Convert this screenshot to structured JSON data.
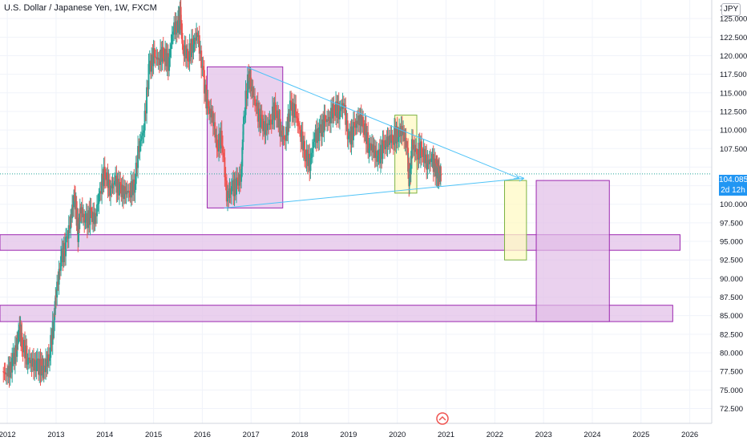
{
  "header": {
    "title": "U.S. Dollar / Japanese Yen, 1W, FXCM",
    "currency": "JPY"
  },
  "price_tag": {
    "price": "104.085",
    "countdown": "2d 12h"
  },
  "colors": {
    "up_candle": "#26a69a",
    "down_candle": "#ef5350",
    "trendline": "#4fc3f7",
    "zone_fill": "#e1bee7",
    "zone_stroke": "#9c27b0",
    "yellow_fill": "#fff9c4",
    "yellow_stroke": "#7cb342",
    "price_line": "#26a69a"
  },
  "logo_icon": "tradingview-logo-icon",
  "chart_data": {
    "type": "candlestick",
    "title": "U.S. Dollar / Japanese Yen, 1W, FXCM",
    "x_ticks": [
      "2012",
      "2013",
      "2014",
      "2015",
      "2016",
      "2017",
      "2018",
      "2019",
      "2020",
      "2021",
      "2022",
      "2023",
      "2024",
      "2025",
      "2026"
    ],
    "y_ticks": [
      "72.500",
      "75.000",
      "77.500",
      "80.000",
      "82.500",
      "85.000",
      "87.500",
      "90.000",
      "92.500",
      "95.000",
      "97.500",
      "100.000",
      "102.500",
      "105.000",
      "107.500",
      "110.000",
      "112.500",
      "115.000",
      "117.500",
      "120.000",
      "122.500",
      "125.000"
    ],
    "y_top_label": "1...0",
    "ylim": [
      70.5,
      127.5
    ],
    "xlim": [
      2011.85,
      2026.45
    ],
    "current_price": 104.085,
    "series": [
      {
        "name": "USDJPY weekly close (approx.)",
        "points": [
          [
            2011.9,
            77.5
          ],
          [
            2012.0,
            77.0
          ],
          [
            2012.1,
            78.5
          ],
          [
            2012.2,
            81.0
          ],
          [
            2012.25,
            83.5
          ],
          [
            2012.3,
            81.5
          ],
          [
            2012.4,
            79.5
          ],
          [
            2012.5,
            78.5
          ],
          [
            2012.6,
            78.2
          ],
          [
            2012.7,
            78.0
          ],
          [
            2012.75,
            77.8
          ],
          [
            2012.85,
            79.5
          ],
          [
            2012.95,
            84.0
          ],
          [
            2013.0,
            88.0
          ],
          [
            2013.1,
            92.5
          ],
          [
            2013.2,
            94.5
          ],
          [
            2013.3,
            98.0
          ],
          [
            2013.38,
            101.5
          ],
          [
            2013.45,
            96.0
          ],
          [
            2013.5,
            99.5
          ],
          [
            2013.6,
            97.5
          ],
          [
            2013.7,
            98.5
          ],
          [
            2013.8,
            98.0
          ],
          [
            2013.9,
            102.0
          ],
          [
            2014.0,
            104.5
          ],
          [
            2014.1,
            102.0
          ],
          [
            2014.2,
            103.0
          ],
          [
            2014.3,
            102.0
          ],
          [
            2014.4,
            101.5
          ],
          [
            2014.5,
            101.8
          ],
          [
            2014.6,
            102.5
          ],
          [
            2014.7,
            108.0
          ],
          [
            2014.8,
            110.0
          ],
          [
            2014.9,
            118.0
          ],
          [
            2015.0,
            120.0
          ],
          [
            2015.1,
            119.5
          ],
          [
            2015.2,
            120.5
          ],
          [
            2015.3,
            119.0
          ],
          [
            2015.4,
            123.5
          ],
          [
            2015.5,
            124.0
          ],
          [
            2015.55,
            125.5
          ],
          [
            2015.6,
            121.0
          ],
          [
            2015.7,
            120.0
          ],
          [
            2015.8,
            121.5
          ],
          [
            2015.9,
            123.0
          ],
          [
            2016.0,
            118.0
          ],
          [
            2016.1,
            113.0
          ],
          [
            2016.2,
            112.0
          ],
          [
            2016.3,
            108.0
          ],
          [
            2016.4,
            109.0
          ],
          [
            2016.5,
            101.0
          ],
          [
            2016.6,
            102.0
          ],
          [
            2016.7,
            102.5
          ],
          [
            2016.8,
            104.0
          ],
          [
            2016.85,
            112.0
          ],
          [
            2016.95,
            117.5
          ],
          [
            2017.0,
            116.0
          ],
          [
            2017.1,
            113.0
          ],
          [
            2017.2,
            111.0
          ],
          [
            2017.3,
            110.0
          ],
          [
            2017.4,
            111.5
          ],
          [
            2017.5,
            113.0
          ],
          [
            2017.6,
            110.0
          ],
          [
            2017.7,
            108.5
          ],
          [
            2017.8,
            113.0
          ],
          [
            2017.9,
            112.5
          ],
          [
            2018.0,
            110.0
          ],
          [
            2018.1,
            107.0
          ],
          [
            2018.2,
            105.5
          ],
          [
            2018.3,
            109.0
          ],
          [
            2018.4,
            109.5
          ],
          [
            2018.5,
            111.0
          ],
          [
            2018.6,
            111.5
          ],
          [
            2018.7,
            113.0
          ],
          [
            2018.8,
            112.5
          ],
          [
            2018.9,
            113.5
          ],
          [
            2019.0,
            108.5
          ],
          [
            2019.1,
            110.0
          ],
          [
            2019.2,
            111.5
          ],
          [
            2019.3,
            111.0
          ],
          [
            2019.4,
            108.0
          ],
          [
            2019.5,
            107.5
          ],
          [
            2019.6,
            106.0
          ],
          [
            2019.7,
            107.5
          ],
          [
            2019.8,
            108.5
          ],
          [
            2019.9,
            109.0
          ],
          [
            2020.0,
            109.5
          ],
          [
            2020.1,
            110.0
          ],
          [
            2020.2,
            107.5
          ],
          [
            2020.25,
            102.5
          ],
          [
            2020.3,
            108.0
          ],
          [
            2020.4,
            107.0
          ],
          [
            2020.5,
            107.5
          ],
          [
            2020.6,
            105.5
          ],
          [
            2020.7,
            106.0
          ],
          [
            2020.8,
            104.5
          ],
          [
            2020.85,
            104.0
          ],
          [
            2020.9,
            104.0
          ]
        ]
      }
    ],
    "trendlines": [
      {
        "from": [
          2016.9,
          118.5
        ],
        "to": [
          2022.5,
          103.5
        ]
      },
      {
        "from": [
          2016.45,
          99.5
        ],
        "to": [
          2022.6,
          103.5
        ]
      }
    ],
    "zones": [
      {
        "x0": 2016.1,
        "x1": 2017.65,
        "y0": 99.5,
        "y1": 118.5,
        "style": "purple"
      },
      {
        "x0": 2019.95,
        "x1": 2020.4,
        "y0": 101.5,
        "y1": 112.0,
        "style": "yellow"
      },
      {
        "x0": 2011.85,
        "x1": 2025.8,
        "y0": 93.8,
        "y1": 95.9,
        "style": "purple"
      },
      {
        "x0": 2011.85,
        "x1": 2025.65,
        "y0": 84.2,
        "y1": 86.4,
        "style": "purple"
      },
      {
        "x0": 2022.2,
        "x1": 2022.65,
        "y0": 92.5,
        "y1": 103.2,
        "style": "yellow"
      },
      {
        "x0": 2022.85,
        "x1": 2024.35,
        "y0": 84.2,
        "y1": 103.2,
        "style": "purple"
      }
    ]
  }
}
